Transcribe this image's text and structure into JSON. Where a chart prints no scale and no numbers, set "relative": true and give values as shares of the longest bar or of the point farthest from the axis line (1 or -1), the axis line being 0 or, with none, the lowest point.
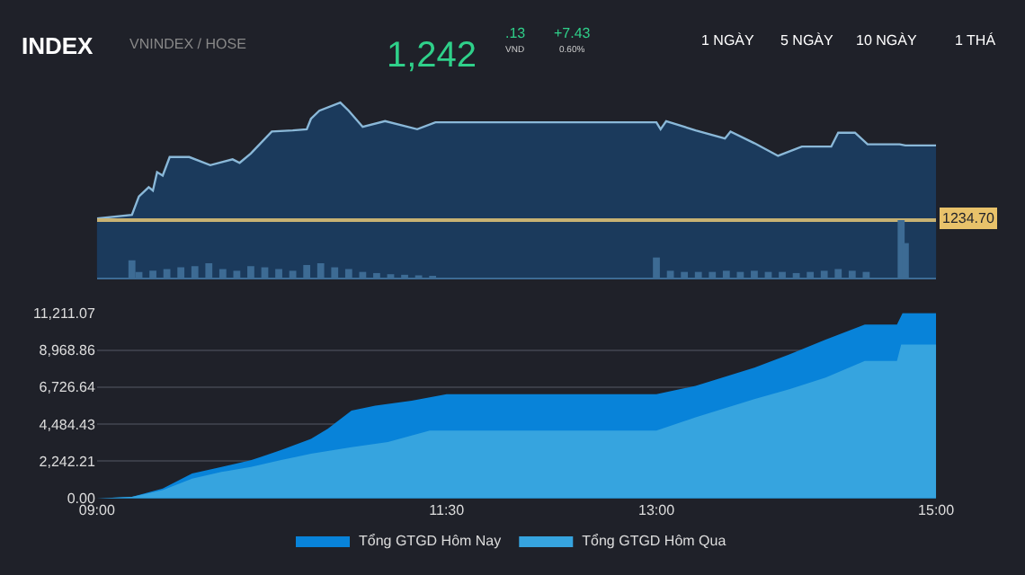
{
  "chart_data": [
    {
      "type": "area",
      "title": "INDEX",
      "subtitle": "VNINDEX / HOSE",
      "annotations": [
        "1,242",
        ".13",
        "VND",
        "+7.43",
        "0.60%",
        "1 NGÀY",
        "5 NGÀY",
        "10 NGÀY",
        "1 THÁ",
        "1234.70"
      ],
      "x": [
        9.0,
        9.25,
        9.3,
        9.37,
        9.4,
        9.43,
        9.47,
        9.52,
        9.66,
        9.81,
        9.97,
        10.02,
        10.1,
        10.25,
        10.4,
        10.5,
        10.53,
        10.59,
        10.74,
        10.8,
        10.9,
        11.06,
        11.29,
        11.42,
        11.48,
        13.0,
        13.03,
        13.07,
        13.28,
        13.49,
        13.53,
        13.7,
        13.87,
        14.04,
        14.25,
        14.3,
        14.42,
        14.51,
        14.74,
        14.78,
        15.0
      ],
      "series": [
        {
          "color": "#8ab8d8",
          "values": [
            0,
            0.03,
            0.19,
            0.27,
            0.24,
            0.4,
            0.37,
            0.53,
            0.53,
            0.46,
            0.51,
            0.48,
            0.56,
            0.75,
            0.76,
            0.77,
            0.86,
            0.93,
            1,
            0.93,
            0.79,
            0.84,
            0.77,
            0.83,
            0.83,
            0.83,
            0.77,
            0.84,
            0.76,
            0.69,
            0.75,
            0.65,
            0.54,
            0.62,
            0.62,
            0.74,
            0.74,
            0.64,
            0.64,
            0.63,
            0.63
          ]
        }
      ],
      "relative": true,
      "xlim": [
        9,
        15
      ]
    },
    {
      "type": "bar",
      "relative": true,
      "xlim": [
        9,
        15
      ],
      "color": "#3d6b94",
      "x": [
        9.25,
        9.3,
        9.4,
        9.5,
        9.6,
        9.7,
        9.8,
        9.9,
        10.0,
        10.1,
        10.2,
        10.3,
        10.4,
        10.5,
        10.6,
        10.7,
        10.8,
        10.9,
        11.0,
        11.1,
        11.2,
        11.3,
        11.4,
        13.0,
        13.1,
        13.2,
        13.3,
        13.4,
        13.5,
        13.6,
        13.7,
        13.8,
        13.9,
        14.0,
        14.1,
        14.2,
        14.3,
        14.4,
        14.5,
        14.75,
        14.78
      ],
      "values": [
        0.3,
        0.1,
        0.12,
        0.15,
        0.18,
        0.2,
        0.25,
        0.15,
        0.12,
        0.2,
        0.18,
        0.15,
        0.12,
        0.22,
        0.25,
        0.18,
        0.15,
        0.1,
        0.08,
        0.06,
        0.05,
        0.04,
        0.03,
        0.35,
        0.12,
        0.1,
        0.1,
        0.1,
        0.12,
        0.1,
        0.12,
        0.1,
        0.1,
        0.08,
        0.1,
        0.12,
        0.15,
        0.12,
        0.1,
        1,
        0.6
      ]
    },
    {
      "type": "area",
      "legend": "bottom",
      "grid": "y",
      "series": [
        {
          "name": "Tổng GTGD Hôm Nay",
          "color": "#0883d9",
          "x": [
            9.0,
            9.25,
            9.47,
            9.68,
            9.89,
            10.1,
            10.31,
            10.53,
            10.65,
            10.82,
            10.99,
            11.25,
            11.5,
            13.0,
            13.28,
            13.7,
            13.95,
            14.21,
            14.49,
            14.72,
            14.76,
            15.0
          ],
          "values": [
            0,
            100,
            600,
            1500,
            1900,
            2300,
            2900,
            3600,
            4200,
            5300,
            5600,
            5900,
            6300,
            6300,
            6800,
            7900,
            8700,
            9600,
            10500,
            10500,
            11200,
            11200
          ]
        },
        {
          "name": "Tổng GTGD Hôm Qua",
          "color": "#36a4df",
          "x": [
            9.0,
            9.25,
            9.47,
            9.68,
            9.89,
            10.1,
            10.31,
            10.53,
            10.82,
            11.08,
            11.25,
            11.38,
            11.5,
            13.0,
            13.28,
            13.7,
            13.95,
            14.21,
            14.49,
            14.72,
            14.75,
            15.0
          ],
          "values": [
            0,
            100,
            500,
            1200,
            1600,
            1900,
            2300,
            2700,
            3100,
            3400,
            3800,
            4100,
            4100,
            4100,
            4900,
            6000,
            6600,
            7300,
            8300,
            8300,
            9300,
            9300
          ]
        }
      ],
      "xlim": [
        9,
        15
      ],
      "xticks": [
        {
          "value": 9,
          "label": "09:00"
        },
        {
          "value": 11.5,
          "label": "11:30"
        },
        {
          "value": 13,
          "label": "13:00"
        },
        {
          "value": 15,
          "label": "15:00"
        }
      ],
      "ylim": [
        0,
        11211.07
      ],
      "yticks": [
        {
          "value": 0,
          "label": "0.00"
        },
        {
          "value": 2242.21,
          "label": "2,242.21"
        },
        {
          "value": 4484.43,
          "label": "4,484.43"
        },
        {
          "value": 6726.64,
          "label": "6,726.64"
        },
        {
          "value": 8968.86,
          "label": "8,968.86"
        },
        {
          "value": 11211.07,
          "label": "11,211.07"
        }
      ]
    }
  ]
}
